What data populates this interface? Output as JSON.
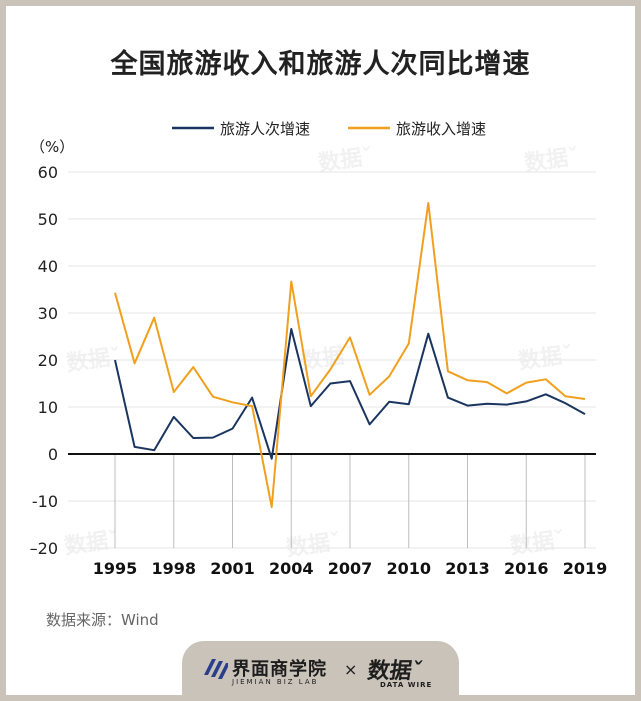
{
  "title": "全国旅游收入和旅游人次同比增速",
  "source": "数据来源：Wind",
  "footer": {
    "brand_cn": "界面商学院",
    "brand_en": "JIEMIAN BIZ LAB",
    "times": "×",
    "partner_cn": "数据ˇ",
    "partner_en": "DATA WIRE"
  },
  "watermark": "数据ˇ",
  "colors": {
    "visitors": "#1a3560",
    "revenue": "#f0a01e",
    "axis": "#111111",
    "grid": "#e6e6e6"
  },
  "chart_data": {
    "type": "line",
    "ylabel": "（%）",
    "ylim": [
      -20,
      60
    ],
    "yticks": [
      60,
      50,
      40,
      30,
      20,
      10,
      0,
      -10,
      -20
    ],
    "ytick_labels": [
      "60",
      "50",
      "40",
      "30",
      "20",
      "10",
      "0",
      "-10",
      "–20"
    ],
    "xlim": [
      1995,
      2019
    ],
    "xticks": [
      1995,
      1998,
      2001,
      2004,
      2007,
      2010,
      2013,
      2016,
      2019
    ],
    "grid": true,
    "legend": "top-center",
    "x": [
      1995,
      1996,
      1997,
      1998,
      1999,
      2000,
      2001,
      2002,
      2003,
      2004,
      2005,
      2006,
      2007,
      2008,
      2009,
      2010,
      2011,
      2012,
      2013,
      2014,
      2015,
      2016,
      2017,
      2018,
      2019
    ],
    "series": [
      {
        "name": "旅游人次增速",
        "values": [
          20,
          1.5,
          0.8,
          7.9,
          3.4,
          3.5,
          5.4,
          12.0,
          -1.0,
          26.6,
          10.2,
          15.0,
          15.5,
          6.3,
          11.1,
          10.6,
          25.6,
          12.0,
          10.3,
          10.7,
          10.5,
          11.2,
          12.7,
          10.8,
          8.5
        ]
      },
      {
        "name": "旅游收入增速",
        "values": [
          34.3,
          19.3,
          29.0,
          13.2,
          18.5,
          12.2,
          11.0,
          10.2,
          -11.3,
          36.7,
          12.3,
          18.0,
          24.8,
          12.6,
          16.5,
          23.5,
          53.4,
          17.6,
          15.7,
          15.3,
          12.9,
          15.2,
          15.9,
          12.3,
          11.7
        ]
      }
    ]
  }
}
